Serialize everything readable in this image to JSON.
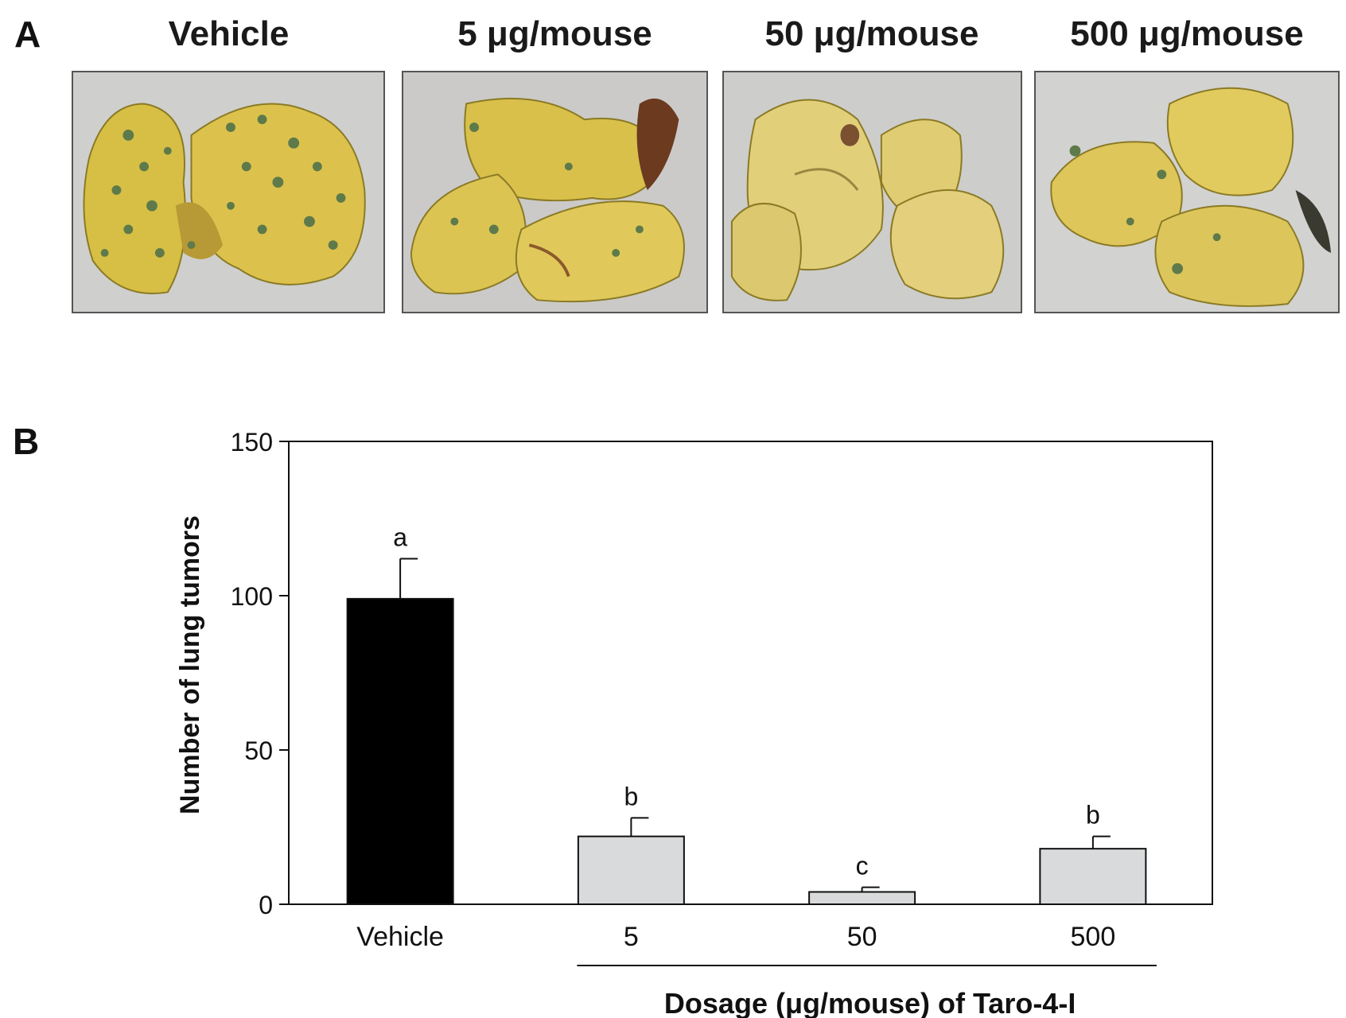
{
  "panel_a": {
    "label": "A",
    "photos": [
      {
        "title": "Vehicle",
        "icon": "lung-photo-many-tumors"
      },
      {
        "title": "5 μg/mouse",
        "icon": "lung-photo-some-tumors"
      },
      {
        "title": "50 μg/mouse",
        "icon": "lung-photo-few-tumors"
      },
      {
        "title": "500 μg/mouse",
        "icon": "lung-photo-some-tumors"
      }
    ],
    "colors": {
      "lung": "#d8c14a",
      "tumor": "#5e7a4a",
      "background": "#cfcfcd"
    }
  },
  "panel_b": {
    "label": "B"
  },
  "chart_data": {
    "type": "bar",
    "categories": [
      "Vehicle",
      "5",
      "50",
      "500"
    ],
    "values": [
      99,
      22,
      4,
      18
    ],
    "errors": [
      13,
      6,
      1.5,
      4
    ],
    "significance": [
      "a",
      "b",
      "c",
      "b"
    ],
    "bar_colors": [
      "#000000",
      "#d9dadc",
      "#d9dadc",
      "#d9dadc"
    ],
    "ylabel": "Number of lung tumors",
    "xlabel": "Dosage (μg/mouse) of Taro-4-I",
    "ylim": [
      0,
      150
    ],
    "yticks": [
      0,
      50,
      100,
      150
    ],
    "grid": false
  }
}
